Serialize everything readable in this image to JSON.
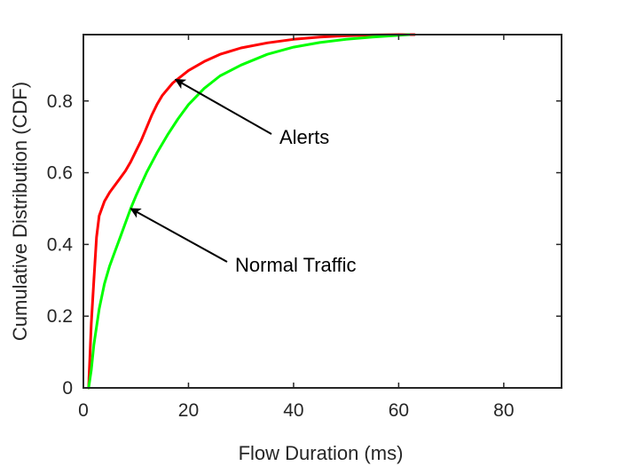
{
  "chart_data": {
    "type": "line",
    "title": "",
    "xlabel": "Flow Duration (ms)",
    "ylabel": "Cumulative Distribution (CDF)",
    "xlim": [
      0,
      91
    ],
    "ylim": [
      0,
      0.985
    ],
    "xticks": [
      0,
      20,
      40,
      60,
      80
    ],
    "yticks": [
      0,
      0.2,
      0.4,
      0.6,
      0.8
    ],
    "xtick_labels": [
      "0",
      "20",
      "40",
      "60",
      "80"
    ],
    "ytick_labels": [
      "0",
      "0.2",
      "0.4",
      "0.6",
      "0.8"
    ],
    "grid": false,
    "series": [
      {
        "name": "Alerts",
        "color": "#ff0000",
        "x": [
          1,
          1.5,
          2,
          2.5,
          3,
          4,
          5,
          6,
          7,
          8,
          9,
          10,
          11,
          12,
          13,
          14,
          15,
          17,
          20,
          23,
          26,
          30,
          35,
          40,
          45,
          50,
          55,
          60,
          63
        ],
        "y": [
          0.0,
          0.18,
          0.3,
          0.42,
          0.48,
          0.52,
          0.545,
          0.565,
          0.585,
          0.605,
          0.63,
          0.66,
          0.69,
          0.725,
          0.76,
          0.79,
          0.815,
          0.85,
          0.885,
          0.91,
          0.93,
          0.948,
          0.962,
          0.972,
          0.978,
          0.982,
          0.984,
          0.985,
          0.985
        ]
      },
      {
        "name": "Normal Traffic",
        "color": "#00ff00",
        "x": [
          1,
          1.5,
          2,
          3,
          4,
          5,
          6,
          7,
          8,
          9,
          10,
          12,
          14,
          16,
          18,
          20,
          23,
          26,
          30,
          35,
          40,
          45,
          50,
          55,
          60,
          62
        ],
        "y": [
          0.0,
          0.05,
          0.12,
          0.22,
          0.29,
          0.34,
          0.38,
          0.42,
          0.46,
          0.5,
          0.535,
          0.6,
          0.655,
          0.705,
          0.75,
          0.79,
          0.835,
          0.87,
          0.9,
          0.93,
          0.95,
          0.963,
          0.972,
          0.978,
          0.983,
          0.985
        ]
      }
    ],
    "annotations": [
      {
        "text": "Alerts",
        "arrow_to": [
          17.5,
          0.86
        ]
      },
      {
        "text": "Normal Traffic",
        "arrow_to": [
          9,
          0.5
        ]
      }
    ]
  }
}
